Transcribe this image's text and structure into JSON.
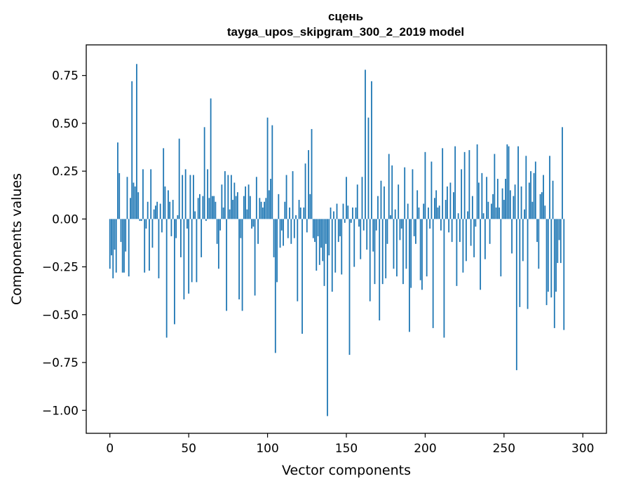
{
  "chart_data": {
    "type": "bar",
    "title": "сцень",
    "subtitle": "tayga_upos_skipgram_300_2_2019 model",
    "xlabel": "Vector components",
    "ylabel": "Components values",
    "xlim": [
      -15,
      315
    ],
    "ylim": [
      -1.12,
      0.91
    ],
    "xticks": [
      0,
      50,
      100,
      150,
      200,
      250,
      300
    ],
    "xtick_labels": [
      "0",
      "50",
      "100",
      "150",
      "200",
      "250",
      "300"
    ],
    "yticks": [
      -1.0,
      -0.75,
      -0.5,
      -0.25,
      0.0,
      0.25,
      0.5,
      0.75
    ],
    "ytick_labels": [
      "−1.00",
      "−0.75",
      "−0.50",
      "−0.25",
      "0.00",
      "0.25",
      "0.50",
      "0.75"
    ],
    "bar_color": "#1f77b4",
    "grid": false,
    "values": [
      -0.26,
      -0.19,
      -0.31,
      -0.16,
      -0.28,
      0.4,
      0.24,
      -0.12,
      -0.28,
      -0.28,
      -0.17,
      0.22,
      -0.3,
      0.11,
      0.72,
      0.19,
      0.17,
      0.81,
      0.14,
      -0.01,
      -0.01,
      0.26,
      -0.28,
      -0.05,
      0.09,
      -0.27,
      0.26,
      -0.15,
      0.05,
      0.07,
      0.09,
      -0.31,
      0.08,
      -0.07,
      0.37,
      0.17,
      -0.62,
      0.15,
      0.09,
      -0.09,
      0.1,
      -0.55,
      -0.1,
      0.02,
      0.42,
      -0.2,
      0.23,
      -0.42,
      0.26,
      -0.05,
      -0.39,
      0.23,
      -0.33,
      0.23,
      0.04,
      -0.33,
      0.11,
      0.13,
      -0.2,
      0.12,
      0.48,
      -0.01,
      0.26,
      0.11,
      0.63,
      0.12,
      0.12,
      0.09,
      -0.13,
      -0.26,
      -0.06,
      0.18,
      0.06,
      0.25,
      -0.48,
      0.23,
      0.05,
      0.23,
      0.1,
      0.19,
      0.12,
      0.14,
      -0.42,
      -0.1,
      -0.48,
      0.12,
      0.17,
      0.05,
      0.18,
      0.12,
      -0.05,
      -0.04,
      -0.4,
      0.22,
      -0.13,
      0.11,
      0.09,
      0.06,
      0.09,
      0.11,
      0.53,
      0.15,
      0.21,
      0.49,
      -0.2,
      -0.7,
      -0.33,
      0.13,
      -0.15,
      -0.06,
      -0.14,
      0.09,
      0.23,
      -0.1,
      0.06,
      -0.13,
      0.25,
      -0.1,
      0.02,
      -0.43,
      0.1,
      0.06,
      -0.6,
      0.06,
      0.29,
      -0.07,
      0.36,
      0.13,
      0.47,
      -0.1,
      -0.12,
      -0.27,
      -0.09,
      -0.24,
      -0.15,
      -0.22,
      -0.35,
      -0.13,
      -1.03,
      -0.19,
      0.06,
      -0.38,
      0.04,
      -0.28,
      0.08,
      -0.12,
      -0.09,
      -0.29,
      0.08,
      -0.02,
      0.22,
      0.07,
      -0.71,
      -0.02,
      0.06,
      -0.25,
      0.06,
      0.18,
      -0.04,
      -0.21,
      0.22,
      -0.06,
      0.78,
      -0.16,
      0.53,
      -0.43,
      0.72,
      -0.17,
      -0.34,
      -0.06,
      0.12,
      -0.53,
      0.2,
      -0.34,
      0.17,
      -0.31,
      -0.13,
      0.34,
      0.02,
      0.28,
      -0.26,
      0.05,
      -0.3,
      0.18,
      -0.11,
      -0.05,
      -0.34,
      0.27,
      -0.26,
      0.08,
      -0.59,
      -0.36,
      0.26,
      -0.09,
      -0.13,
      0.15,
      0.06,
      -0.32,
      -0.37,
      0.08,
      0.35,
      -0.3,
      0.06,
      -0.05,
      0.3,
      -0.57,
      0.11,
      0.15,
      0.06,
      0.07,
      -0.06,
      0.37,
      -0.62,
      0.1,
      0.17,
      -0.07,
      0.19,
      -0.12,
      0.14,
      0.38,
      -0.35,
      0.03,
      -0.12,
      0.26,
      -0.28,
      0.35,
      -0.22,
      0.04,
      0.36,
      -0.14,
      0.12,
      -0.2,
      -0.04,
      0.39,
      0.19,
      -0.37,
      0.24,
      0.03,
      -0.21,
      0.22,
      0.09,
      -0.13,
      0.08,
      0.13,
      0.34,
      0.06,
      0.21,
      0.06,
      -0.3,
      0.16,
      0.1,
      0.21,
      0.39,
      0.38,
      0.15,
      -0.18,
      0.12,
      0.18,
      -0.79,
      0.38,
      -0.46,
      0.17,
      -0.22,
      0.05,
      0.33,
      -0.47,
      0.19,
      0.25,
      0.09,
      0.24,
      0.3,
      -0.12,
      -0.26,
      0.13,
      0.14,
      0.23,
      0.07,
      -0.45,
      -0.38,
      0.33,
      -0.41,
      0.2,
      -0.57,
      -0.38,
      -0.23,
      -0.11,
      -0.23,
      0.48,
      -0.58
    ]
  }
}
